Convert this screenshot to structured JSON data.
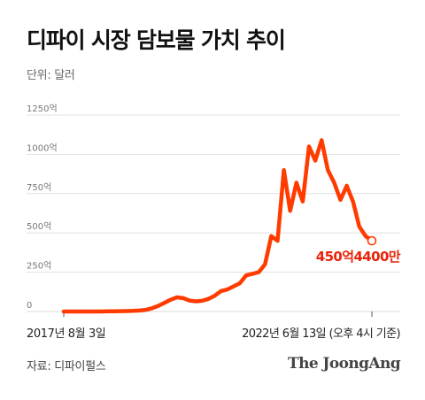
{
  "header": {
    "title": "디파이 시장 담보물 가치 추이",
    "unit": "단위: 달러"
  },
  "footer": {
    "source": "자료: 디파이펄스",
    "publisher_logo": "The JoongAng"
  },
  "colors": {
    "line": "#ff3b00",
    "end_label": "#e8230a",
    "grid": "#d9d9d9",
    "axis_text": "#777777"
  },
  "chart_data": {
    "type": "line",
    "title": "디파이 시장 담보물 가치 추이",
    "xlabel": "",
    "ylabel": "",
    "ylim": [
      0,
      1250
    ],
    "grid": true,
    "yticks": [
      {
        "value": 0,
        "label": "0"
      },
      {
        "value": 250,
        "label": "250억"
      },
      {
        "value": 500,
        "label": "500억"
      },
      {
        "value": 750,
        "label": "750억"
      },
      {
        "value": 1000,
        "label": "1000억"
      },
      {
        "value": 1250,
        "label": "1250억"
      }
    ],
    "x_start_label": "2017년 8월 3일",
    "x_end_label": "2022년 6월 13일 (오후 4시 기준)",
    "end_annotation": "450억4400만",
    "values": [
      0,
      0,
      0,
      0,
      0,
      0,
      0,
      1,
      1,
      2,
      3,
      4,
      6,
      10,
      20,
      35,
      55,
      75,
      90,
      85,
      70,
      65,
      68,
      80,
      100,
      130,
      140,
      160,
      180,
      230,
      240,
      250,
      300,
      480,
      450,
      900,
      640,
      820,
      700,
      1050,
      960,
      1090,
      900,
      820,
      710,
      800,
      700,
      540,
      480,
      450
    ]
  }
}
